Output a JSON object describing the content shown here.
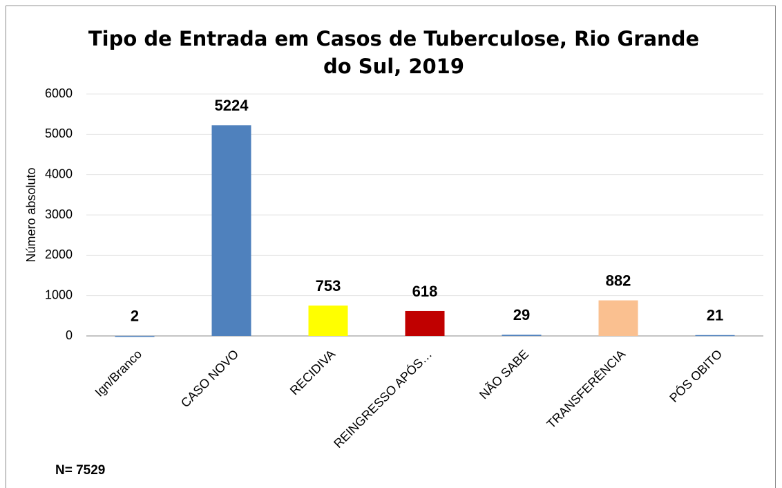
{
  "chart_data": {
    "type": "bar",
    "title": "Tipo de Entrada em Casos de Tuberculose, Rio Grande do Sul, 2019",
    "y_label": "Número absoluto",
    "annotation": "N= 7529",
    "categories": [
      "Ign/Branco",
      "CASO NOVO",
      "RECIDIVA",
      "REINGRESSO APÓS…",
      "NÃO SABE",
      "TRANSFERÊNCIA",
      "PÓS OBITO"
    ],
    "values": [
      2,
      5224,
      753,
      618,
      29,
      882,
      21
    ],
    "colors": [
      "#4f81bd",
      "#4f81bd",
      "#ffff00",
      "#c00000",
      "#4f81bd",
      "#fac090",
      "#4f81bd"
    ],
    "ylim": [
      0,
      6000
    ],
    "yticks": [
      0,
      1000,
      2000,
      3000,
      4000,
      5000,
      6000
    ],
    "grid": true
  }
}
